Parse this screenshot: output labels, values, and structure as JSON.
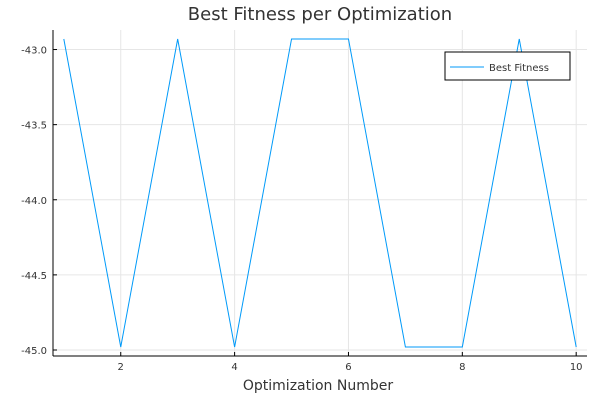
{
  "chart_data": {
    "type": "line",
    "title": "Best Fitness per Optimization",
    "xlabel": "Optimization Number",
    "ylabel": "",
    "x": [
      1,
      2,
      3,
      4,
      5,
      6,
      7,
      8,
      9,
      10
    ],
    "series": [
      {
        "name": "Best Fitness",
        "color": "#009AF9",
        "values": [
          -42.93,
          -44.98,
          -42.93,
          -44.98,
          -42.93,
          -42.93,
          -44.98,
          -44.98,
          -42.93,
          -44.98
        ]
      }
    ],
    "xlim": [
      0.81,
      10.19
    ],
    "ylim": [
      -45.04,
      -42.87
    ],
    "xticks": [
      2,
      4,
      6,
      8,
      10
    ],
    "xtick_labels": [
      "2",
      "4",
      "6",
      "8",
      "10"
    ],
    "yticks": [
      -43.0,
      -43.5,
      -44.0,
      -44.5,
      -45.0
    ],
    "ytick_labels": [
      "-43.0",
      "-43.5",
      "-44.0",
      "-44.5",
      "-45.0"
    ],
    "grid": true,
    "legend_position": "top-right"
  }
}
